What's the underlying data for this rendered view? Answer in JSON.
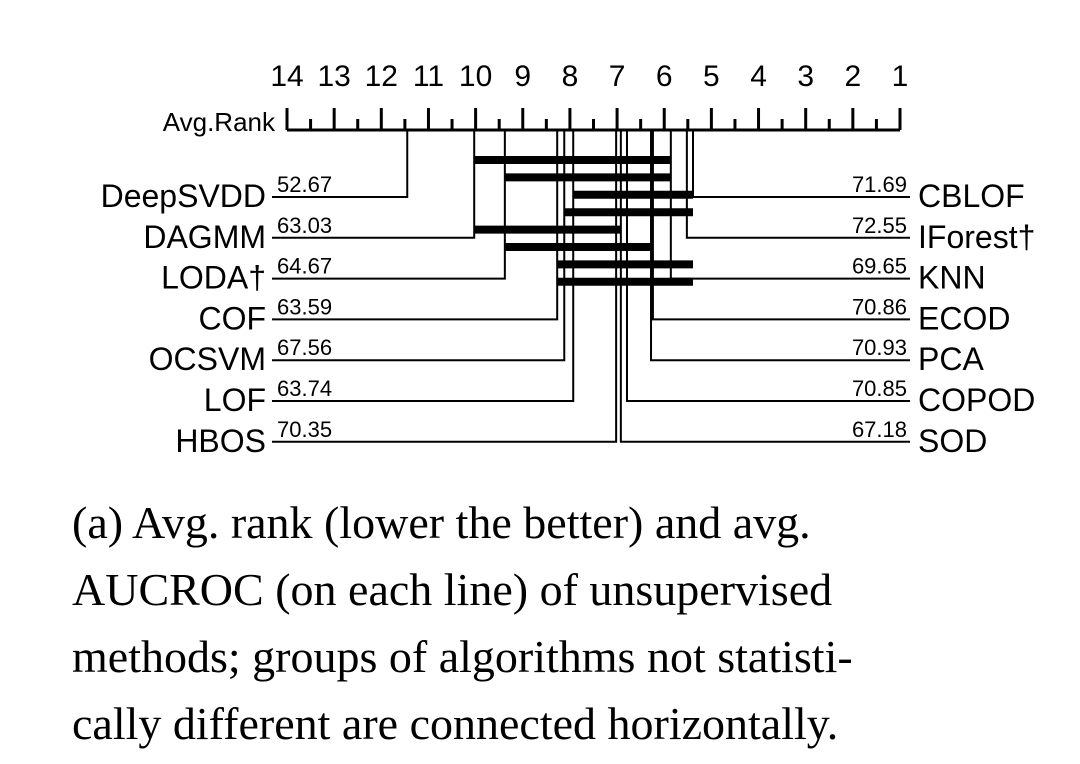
{
  "chart_data": {
    "type": "cd-diagram",
    "xlabel": "Avg.Rank",
    "xlim": [
      14,
      1
    ],
    "xticks": [
      14,
      13,
      12,
      11,
      10,
      9,
      8,
      7,
      6,
      5,
      4,
      3,
      2,
      1
    ],
    "xminorticks": [
      13.5,
      12.5,
      11.5,
      10.5,
      9.5,
      8.5,
      7.5,
      6.5,
      5.5,
      4.5,
      3.5,
      2.5,
      1.5
    ],
    "color": "#000000",
    "left": [
      {
        "name": "DeepSVDD",
        "rank": 11.45,
        "value": 52.67
      },
      {
        "name": "DAGMM",
        "rank": 10.03,
        "value": 63.03
      },
      {
        "name": "LODA†",
        "rank": 9.38,
        "value": 64.67
      },
      {
        "name": "COF",
        "rank": 8.27,
        "value": 63.59
      },
      {
        "name": "OCSVM",
        "rank": 8.12,
        "value": 67.56
      },
      {
        "name": "LOF",
        "rank": 7.93,
        "value": 63.74
      },
      {
        "name": "HBOS",
        "rank": 7.02,
        "value": 70.35
      }
    ],
    "right": [
      {
        "name": "CBLOF",
        "rank": 5.39,
        "value": 71.69
      },
      {
        "name": "IForest†",
        "rank": 5.52,
        "value": 72.55
      },
      {
        "name": "KNN",
        "rank": 5.86,
        "value": 69.65
      },
      {
        "name": "ECOD",
        "rank": 6.24,
        "value": 70.86
      },
      {
        "name": "PCA",
        "rank": 6.28,
        "value": 70.93
      },
      {
        "name": "COPOD",
        "rank": 6.79,
        "value": 70.85
      },
      {
        "name": "SOD",
        "rank": 6.92,
        "value": 67.18
      }
    ],
    "cliques": [
      {
        "from": 10.03,
        "to": 5.86
      },
      {
        "from": 9.38,
        "to": 5.86
      },
      {
        "from": 7.93,
        "to": 5.39
      },
      {
        "from": 8.12,
        "to": 5.39
      },
      {
        "from": 10.03,
        "to": 6.92
      },
      {
        "from": 9.38,
        "to": 6.24
      },
      {
        "from": 8.27,
        "to": 5.39
      },
      {
        "from": 8.27,
        "to": 5.39
      }
    ]
  },
  "caption": [
    "(a) Avg. rank (lower the better) and avg.",
    "AUCROC (on each line) of unsupervised",
    "methods; groups of algorithms not statisti-",
    "cally different are connected horizontally."
  ]
}
